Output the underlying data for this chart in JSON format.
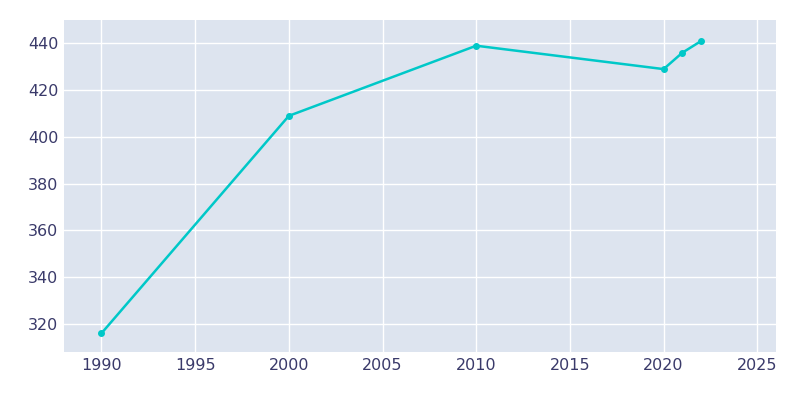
{
  "years": [
    1990,
    2000,
    2010,
    2020,
    2021,
    2022
  ],
  "population": [
    316,
    409,
    439,
    429,
    436,
    441
  ],
  "line_color": "#00c8c8",
  "marker": "o",
  "marker_size": 4,
  "line_width": 1.8,
  "plot_bg_color": "#dde4ef",
  "fig_bg_color": "#ffffff",
  "xlim": [
    1988,
    2026
  ],
  "ylim": [
    308,
    450
  ],
  "xticks": [
    1990,
    1995,
    2000,
    2005,
    2010,
    2015,
    2020,
    2025
  ],
  "yticks": [
    320,
    340,
    360,
    380,
    400,
    420,
    440
  ],
  "grid_color": "#ffffff",
  "tick_color": "#3a3a6a",
  "tick_fontsize": 11.5
}
